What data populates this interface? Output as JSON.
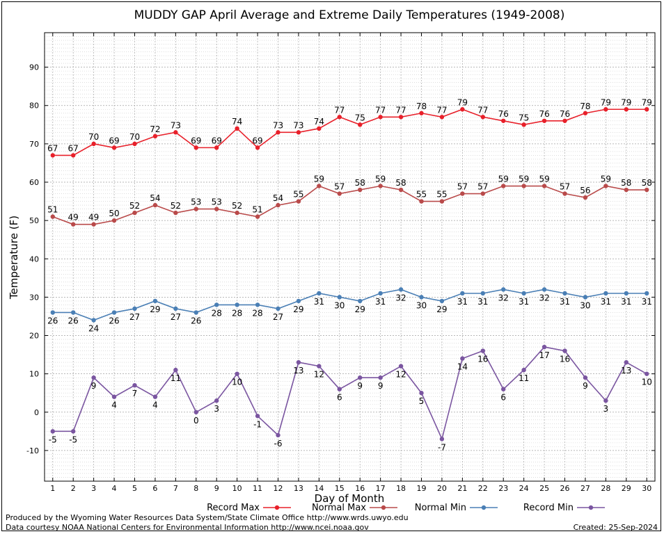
{
  "chart_data": {
    "type": "line",
    "title": "MUDDY GAP April Average and Extreme Daily Temperatures (1949-2008)",
    "xlabel": "Day of Month",
    "ylabel": "Temperature (F)",
    "x": [
      1,
      2,
      3,
      4,
      5,
      6,
      7,
      8,
      9,
      10,
      11,
      12,
      13,
      14,
      15,
      16,
      17,
      18,
      19,
      20,
      21,
      22,
      23,
      24,
      25,
      26,
      27,
      28,
      29,
      30
    ],
    "xlim": [
      0.6,
      30.4
    ],
    "ylim": [
      -18,
      99
    ],
    "yticks": [
      -10,
      0,
      10,
      20,
      30,
      40,
      50,
      60,
      70,
      80,
      90
    ],
    "grid": true,
    "legend_position": "bottom",
    "series": [
      {
        "name": "Record Max",
        "color": "#e8202a",
        "label_position": "above",
        "values": [
          67,
          67,
          70,
          69,
          70,
          72,
          73,
          69,
          69,
          74,
          69,
          73,
          73,
          74,
          77,
          75,
          77,
          77,
          78,
          77,
          79,
          77,
          76,
          75,
          76,
          76,
          78,
          79,
          79,
          79
        ]
      },
      {
        "name": "Normal Max",
        "color": "#b94a4a",
        "label_position": "above",
        "values": [
          51,
          49,
          49,
          50,
          52,
          54,
          52,
          53,
          53,
          52,
          51,
          54,
          55,
          59,
          57,
          58,
          59,
          58,
          55,
          55,
          57,
          57,
          59,
          59,
          59,
          57,
          56,
          59,
          58,
          58
        ]
      },
      {
        "name": "Normal Min",
        "color": "#4a7fb5",
        "label_position": "below",
        "values": [
          26,
          26,
          24,
          26,
          27,
          29,
          27,
          26,
          28,
          28,
          28,
          27,
          29,
          31,
          30,
          29,
          31,
          32,
          30,
          29,
          31,
          31,
          32,
          31,
          32,
          31,
          30,
          31,
          31,
          31
        ]
      },
      {
        "name": "Record Min",
        "color": "#7a55a0",
        "label_position": "below",
        "values": [
          -5,
          -5,
          9,
          4,
          7,
          4,
          11,
          0,
          3,
          10,
          -1,
          -6,
          13,
          12,
          6,
          9,
          9,
          12,
          5,
          -7,
          14,
          16,
          6,
          11,
          17,
          16,
          9,
          3,
          13,
          10
        ]
      }
    ]
  },
  "footer": {
    "produced_by": "Produced by the Wyoming Water Resources Data System/State Climate Office http://www.wrds.uwyo.edu",
    "courtesy": "Data courtesy NOAA National Centers for Environmental Information http://www.ncei.noaa.gov",
    "created": "Created: 25-Sep-2024"
  }
}
